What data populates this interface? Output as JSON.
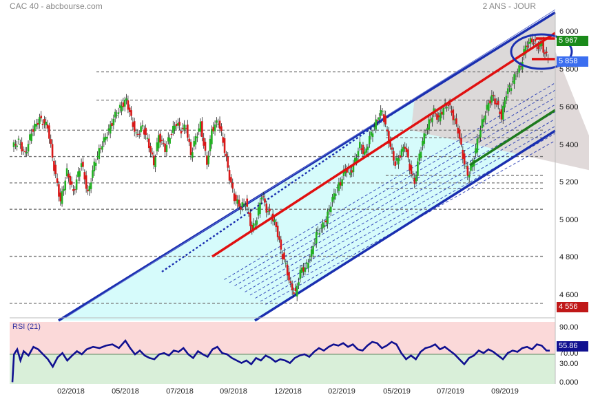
{
  "header": {
    "title": "CAC 40 - abcbourse.com",
    "period": "2 ANS - JOUR"
  },
  "colors": {
    "bull": "#22b022",
    "bear": "#d81818",
    "channel": "#1a2fb0",
    "median": "#e01010",
    "support": "#1e7a1e",
    "channel_fill": "#d6fbfb",
    "resistance_fill": "#ddd5d5",
    "rsi_line": "#101090",
    "rsi_upper": "#fbd9d9",
    "rsi_lower": "#d9efd9",
    "badge_last": "#1a8a1a",
    "badge_mark": "#3b6ef0",
    "badge_low": "#c01818",
    "badge_rsi": "#101090"
  },
  "chart_data": [
    {
      "type": "candlestick",
      "title": "CAC 40 - abcbourse.com",
      "period": "2 ANS - JOUR",
      "y_ticks": [
        "6 000",
        "5 800",
        "5 600",
        "5 400",
        "5 200",
        "5 000",
        "4 800",
        "4 600"
      ],
      "y_tick_values": [
        6000,
        5800,
        5600,
        5400,
        5200,
        5000,
        4800,
        4600
      ],
      "ylim": [
        4530,
        6020
      ],
      "x_ticks": [
        "02/2018",
        "05/2018",
        "07/2018",
        "09/2018",
        "12/2018",
        "02/2019",
        "05/2019",
        "07/2019",
        "09/2019"
      ],
      "price_path": [
        [
          0,
          5390
        ],
        [
          4,
          5420
        ],
        [
          8,
          5350
        ],
        [
          12,
          5470
        ],
        [
          17,
          5540
        ],
        [
          22,
          5500
        ],
        [
          26,
          5280
        ],
        [
          30,
          5100
        ],
        [
          34,
          5260
        ],
        [
          38,
          5150
        ],
        [
          43,
          5310
        ],
        [
          47,
          5140
        ],
        [
          51,
          5300
        ],
        [
          55,
          5390
        ],
        [
          60,
          5480
        ],
        [
          64,
          5560
        ],
        [
          68,
          5610
        ],
        [
          71,
          5640
        ],
        [
          74,
          5540
        ],
        [
          77,
          5450
        ],
        [
          81,
          5500
        ],
        [
          85,
          5400
        ],
        [
          88,
          5300
        ],
        [
          91,
          5450
        ],
        [
          95,
          5380
        ],
        [
          99,
          5470
        ],
        [
          102,
          5520
        ],
        [
          105,
          5480
        ],
        [
          108,
          5500
        ],
        [
          111,
          5350
        ],
        [
          114,
          5440
        ],
        [
          117,
          5510
        ],
        [
          121,
          5300
        ],
        [
          124,
          5480
        ],
        [
          128,
          5530
        ],
        [
          131,
          5420
        ],
        [
          135,
          5230
        ],
        [
          138,
          5120
        ],
        [
          142,
          5070
        ],
        [
          145,
          5100
        ],
        [
          149,
          4950
        ],
        [
          152,
          5010
        ],
        [
          155,
          5140
        ],
        [
          158,
          5060
        ],
        [
          161,
          5020
        ],
        [
          164,
          4970
        ],
        [
          167,
          4840
        ],
        [
          170,
          4760
        ],
        [
          173,
          4650
        ],
        [
          176,
          4610
        ],
        [
          179,
          4730
        ],
        [
          183,
          4760
        ],
        [
          186,
          4830
        ],
        [
          189,
          4930
        ],
        [
          192,
          4960
        ],
        [
          195,
          5000
        ],
        [
          198,
          5090
        ],
        [
          201,
          5160
        ],
        [
          204,
          5200
        ],
        [
          207,
          5280
        ],
        [
          210,
          5250
        ],
        [
          213,
          5320
        ],
        [
          216,
          5400
        ],
        [
          219,
          5350
        ],
        [
          222,
          5440
        ],
        [
          225,
          5500
        ],
        [
          228,
          5560
        ],
        [
          230,
          5580
        ],
        [
          232,
          5500
        ],
        [
          235,
          5390
        ],
        [
          238,
          5300
        ],
        [
          241,
          5350
        ],
        [
          244,
          5400
        ],
        [
          247,
          5280
        ],
        [
          250,
          5200
        ],
        [
          253,
          5350
        ],
        [
          256,
          5450
        ],
        [
          259,
          5520
        ],
        [
          262,
          5580
        ],
        [
          265,
          5540
        ],
        [
          268,
          5600
        ],
        [
          271,
          5620
        ],
        [
          274,
          5550
        ],
        [
          277,
          5480
        ],
        [
          280,
          5340
        ],
        [
          283,
          5240
        ],
        [
          286,
          5300
        ],
        [
          289,
          5420
        ],
        [
          292,
          5520
        ],
        [
          295,
          5600
        ],
        [
          298,
          5660
        ],
        [
          301,
          5620
        ],
        [
          304,
          5550
        ],
        [
          307,
          5680
        ],
        [
          310,
          5720
        ],
        [
          313,
          5780
        ],
        [
          316,
          5820
        ],
        [
          318,
          5900
        ],
        [
          320,
          5940
        ],
        [
          323,
          5960
        ],
        [
          326,
          5920
        ],
        [
          329,
          5940
        ],
        [
          331,
          5880
        ],
        [
          333,
          5870
        ]
      ],
      "horizontal_levels": [
        5640,
        5480,
        5440,
        5340,
        5240,
        5200,
        5170,
        5060,
        4810,
        4560,
        5790
      ],
      "last_value": "5 967",
      "marker_value": "5 858",
      "low_value": "4 556",
      "annotations": [
        "regression channel",
        "median trend line",
        "support line",
        "target ellipse"
      ]
    },
    {
      "type": "line",
      "title": "RSI (21)",
      "y_ticks": [
        "90.00",
        "70.00",
        "30.00",
        "0.000"
      ],
      "y_tick_values": [
        90,
        70,
        30,
        0
      ],
      "ylim": [
        0,
        100
      ],
      "zones": {
        "overbought": 70,
        "oversold": 30,
        "midline": 50
      },
      "last_value": "55.86",
      "path": [
        [
          0,
          5
        ],
        [
          1,
          50
        ],
        [
          3,
          58
        ],
        [
          5,
          40
        ],
        [
          7,
          55
        ],
        [
          10,
          48
        ],
        [
          13,
          62
        ],
        [
          16,
          58
        ],
        [
          19,
          50
        ],
        [
          22,
          42
        ],
        [
          25,
          30
        ],
        [
          28,
          45
        ],
        [
          31,
          52
        ],
        [
          34,
          40
        ],
        [
          37,
          48
        ],
        [
          40,
          55
        ],
        [
          43,
          50
        ],
        [
          46,
          58
        ],
        [
          50,
          62
        ],
        [
          54,
          60
        ],
        [
          58,
          64
        ],
        [
          62,
          66
        ],
        [
          66,
          60
        ],
        [
          70,
          72
        ],
        [
          73,
          60
        ],
        [
          76,
          50
        ],
        [
          79,
          56
        ],
        [
          82,
          48
        ],
        [
          85,
          44
        ],
        [
          88,
          42
        ],
        [
          91,
          50
        ],
        [
          94,
          52
        ],
        [
          97,
          48
        ],
        [
          100,
          56
        ],
        [
          103,
          54
        ],
        [
          106,
          60
        ],
        [
          109,
          50
        ],
        [
          112,
          44
        ],
        [
          115,
          55
        ],
        [
          118,
          50
        ],
        [
          121,
          46
        ],
        [
          124,
          58
        ],
        [
          127,
          62
        ],
        [
          130,
          52
        ],
        [
          133,
          50
        ],
        [
          136,
          44
        ],
        [
          139,
          40
        ],
        [
          142,
          36
        ],
        [
          145,
          40
        ],
        [
          148,
          34
        ],
        [
          151,
          44
        ],
        [
          154,
          40
        ],
        [
          157,
          48
        ],
        [
          160,
          44
        ],
        [
          163,
          38
        ],
        [
          166,
          42
        ],
        [
          169,
          40
        ],
        [
          172,
          36
        ],
        [
          175,
          44
        ],
        [
          178,
          48
        ],
        [
          181,
          50
        ],
        [
          184,
          46
        ],
        [
          187,
          54
        ],
        [
          190,
          60
        ],
        [
          193,
          56
        ],
        [
          196,
          62
        ],
        [
          199,
          66
        ],
        [
          202,
          64
        ],
        [
          205,
          68
        ],
        [
          208,
          62
        ],
        [
          211,
          66
        ],
        [
          214,
          58
        ],
        [
          217,
          56
        ],
        [
          220,
          64
        ],
        [
          223,
          70
        ],
        [
          226,
          68
        ],
        [
          229,
          60
        ],
        [
          232,
          64
        ],
        [
          235,
          70
        ],
        [
          238,
          66
        ],
        [
          241,
          52
        ],
        [
          244,
          42
        ],
        [
          247,
          48
        ],
        [
          250,
          42
        ],
        [
          253,
          54
        ],
        [
          256,
          60
        ],
        [
          259,
          62
        ],
        [
          262,
          66
        ],
        [
          265,
          58
        ],
        [
          268,
          62
        ],
        [
          271,
          56
        ],
        [
          274,
          50
        ],
        [
          277,
          42
        ],
        [
          280,
          34
        ],
        [
          283,
          44
        ],
        [
          286,
          48
        ],
        [
          289,
          56
        ],
        [
          292,
          52
        ],
        [
          295,
          58
        ],
        [
          298,
          54
        ],
        [
          301,
          48
        ],
        [
          304,
          42
        ],
        [
          307,
          52
        ],
        [
          310,
          56
        ],
        [
          313,
          54
        ],
        [
          316,
          60
        ],
        [
          319,
          62
        ],
        [
          322,
          58
        ],
        [
          325,
          66
        ],
        [
          328,
          64
        ],
        [
          331,
          56
        ],
        [
          333,
          55.86
        ]
      ]
    }
  ]
}
